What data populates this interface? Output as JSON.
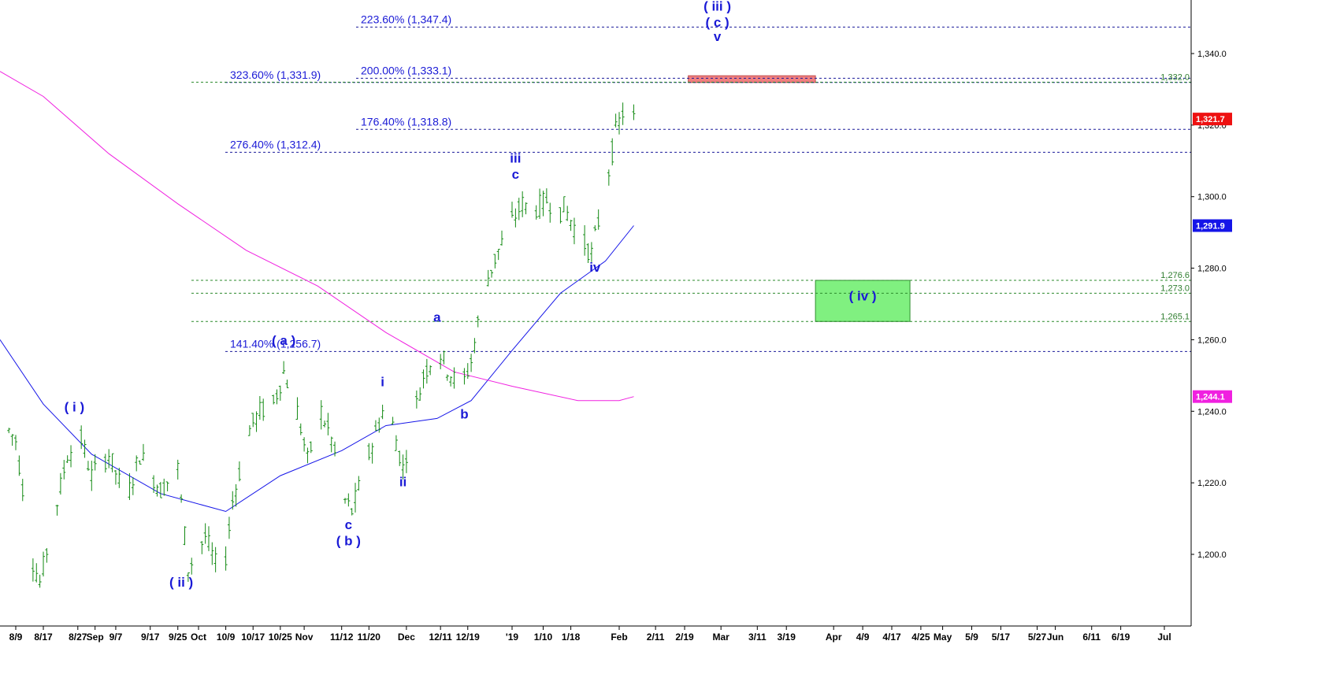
{
  "chart_data": {
    "type": "candlestick",
    "price_axis": {
      "ticks": [
        1200,
        1220,
        1240,
        1260,
        1280,
        1300,
        1320,
        1340
      ],
      "tick_labels": [
        "1,200.0",
        "1,220.0",
        "1,240.0",
        "1,260.0",
        "1,280.0",
        "1,300.0",
        "1,320.0",
        "1,340.0"
      ],
      "ylim": [
        1186,
        1361
      ]
    },
    "time_axis": {
      "labels": [
        "8/9",
        "8/17",
        "8/27",
        "Sep",
        "9/7",
        "9/17",
        "9/25",
        "Oct",
        "10/9",
        "10/17",
        "10/25",
        "Nov",
        "11/12",
        "11/20",
        "Dec",
        "12/11",
        "12/19",
        "'19",
        "1/10",
        "1/18",
        "Feb",
        "2/11",
        "2/19",
        "Mar",
        "3/11",
        "3/19",
        "Apr",
        "4/9",
        "4/17",
        "4/25",
        "May",
        "5/9",
        "5/17",
        "5/27",
        "Jun",
        "6/11",
        "6/19",
        "Jul"
      ]
    },
    "price_anchors": [
      {
        "date": "8/6",
        "price": 1236
      },
      {
        "date": "8/9",
        "price": 1232
      },
      {
        "date": "8/14",
        "price": 1198
      },
      {
        "date": "8/16",
        "price": 1192
      },
      {
        "date": "8/20",
        "price": 1210
      },
      {
        "date": "8/24",
        "price": 1228
      },
      {
        "date": "8/28",
        "price": 1232
      },
      {
        "date": "8/31",
        "price": 1222
      },
      {
        "date": "9/5",
        "price": 1228
      },
      {
        "date": "9/10",
        "price": 1215
      },
      {
        "date": "9/14",
        "price": 1228
      },
      {
        "date": "9/20",
        "price": 1218
      },
      {
        "date": "9/25",
        "price": 1224
      },
      {
        "date": "9/28",
        "price": 1196
      },
      {
        "date": "10/3",
        "price": 1205
      },
      {
        "date": "10/8",
        "price": 1192
      },
      {
        "date": "10/11",
        "price": 1215
      },
      {
        "date": "10/16",
        "price": 1235
      },
      {
        "date": "10/19",
        "price": 1240
      },
      {
        "date": "10/23",
        "price": 1242
      },
      {
        "date": "10/26",
        "price": 1251
      },
      {
        "date": "10/30",
        "price": 1240
      },
      {
        "date": "11/2",
        "price": 1226
      },
      {
        "date": "11/6",
        "price": 1240
      },
      {
        "date": "11/9",
        "price": 1232
      },
      {
        "date": "11/13",
        "price": 1215
      },
      {
        "date": "11/15",
        "price": 1212
      },
      {
        "date": "11/20",
        "price": 1228
      },
      {
        "date": "11/24",
        "price": 1240
      },
      {
        "date": "11/27",
        "price": 1236
      },
      {
        "date": "11/30",
        "price": 1224
      },
      {
        "date": "12/3",
        "price": 1238
      },
      {
        "date": "12/6",
        "price": 1250
      },
      {
        "date": "12/10",
        "price": 1258
      },
      {
        "date": "12/13",
        "price": 1252
      },
      {
        "date": "12/17",
        "price": 1246
      },
      {
        "date": "12/20",
        "price": 1254
      },
      {
        "date": "12/24",
        "price": 1275
      },
      {
        "date": "12/28",
        "price": 1285
      },
      {
        "date": "1/1",
        "price": 1293
      },
      {
        "date": "1/4",
        "price": 1298
      },
      {
        "date": "1/7",
        "price": 1296
      },
      {
        "date": "1/11",
        "price": 1299
      },
      {
        "date": "1/15",
        "price": 1296
      },
      {
        "date": "1/16",
        "price": 1297
      },
      {
        "date": "1/21",
        "price": 1288
      },
      {
        "date": "1/24",
        "price": 1284
      },
      {
        "date": "1/28",
        "price": 1302
      },
      {
        "date": "1/31",
        "price": 1318
      },
      {
        "date": "2/4",
        "price": 1329
      },
      {
        "date": "2/5",
        "price": 1321.7
      }
    ],
    "moving_averages": [
      {
        "name": "blue-ma",
        "color": "#1515e8",
        "last_value": 1291.9,
        "last_label": "1,291.9"
      },
      {
        "name": "magenta-ma",
        "color": "#f020e0",
        "last_value": 1244.1,
        "last_label": "1,244.1"
      }
    ],
    "last_price": {
      "value": 1321.7,
      "label": "1,321.7"
    },
    "fib_levels": [
      {
        "pct_label": "223.60% (1,347.4)",
        "value": 1347.4,
        "side": "inner"
      },
      {
        "pct_label": "323.60% (1,331.9)",
        "value": 1331.9,
        "side": "outer"
      },
      {
        "pct_label": "200.00% (1,333.1)",
        "value": 1333.1,
        "side": "inner"
      },
      {
        "pct_label": "176.40% (1,318.8)",
        "value": 1318.8,
        "side": "inner"
      },
      {
        "pct_label": "276.40% (1,312.4)",
        "value": 1312.4,
        "side": "outer"
      },
      {
        "pct_label": "141.40% (1,256.7)",
        "value": 1256.7,
        "side": "outer"
      }
    ],
    "green_levels": [
      {
        "value": 1332.0,
        "label": "1,332.0"
      },
      {
        "value": 1276.6,
        "label": "1,276.6"
      },
      {
        "value": 1273.0,
        "label": "1,273.0"
      },
      {
        "value": 1265.1,
        "label": "1,265.1"
      }
    ],
    "target_boxes": [
      {
        "name": "red-target-box",
        "color": "#f08080",
        "date_from": "2/20",
        "date_to": "3/27",
        "price_from": 1331.9,
        "price_to": 1333.8
      },
      {
        "name": "green-target-box",
        "color": "#80f080",
        "date_from": "3/27",
        "date_to": "4/22",
        "price_from": 1265.1,
        "price_to": 1276.6
      }
    ],
    "wave_labels": [
      {
        "text": "( i )",
        "date": "8/26",
        "price": 1240
      },
      {
        "text": "( ii )",
        "date": "9/26",
        "price": 1191
      },
      {
        "text": "( a )",
        "date": "10/26",
        "price": 1258.5
      },
      {
        "text": "c",
        "date": "11/14",
        "price": 1207
      },
      {
        "text": "( b )",
        "date": "11/14",
        "price": 1202.5
      },
      {
        "text": "i",
        "date": "11/24",
        "price": 1247
      },
      {
        "text": "ii",
        "date": "11/30",
        "price": 1219
      },
      {
        "text": "a",
        "date": "12/10",
        "price": 1265
      },
      {
        "text": "b",
        "date": "12/18",
        "price": 1238
      },
      {
        "text": "iii",
        "date": "1/2",
        "price": 1309.5
      },
      {
        "text": "c",
        "date": "1/2",
        "price": 1305
      },
      {
        "text": "iv",
        "date": "1/25",
        "price": 1279
      },
      {
        "text": "( iii )",
        "date": "2/28",
        "price": 1352
      },
      {
        "text": "( c )",
        "date": "2/28",
        "price": 1347.5
      },
      {
        "text": "v",
        "date": "2/28",
        "price": 1343.5
      },
      {
        "text": "( iv )",
        "date": "4/9",
        "price": 1271
      }
    ]
  },
  "colors": {
    "wave_text": "#1a1ad6",
    "fib_text": "#1a1ad6",
    "green_text": "#2e7d2e",
    "axis_text": "#000000",
    "candle": "#138a13",
    "last_price_badge": "#ee1111",
    "blue_ma_badge": "#1515e8",
    "magenta_ma_badge": "#f020e0"
  }
}
